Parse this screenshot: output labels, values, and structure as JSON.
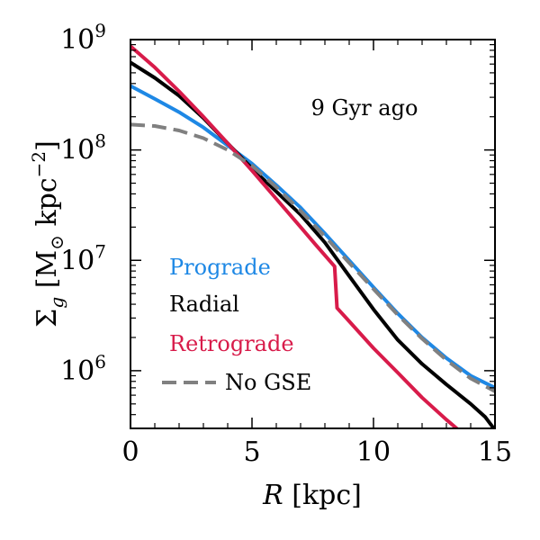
{
  "chart_data": {
    "type": "line",
    "xlabel": "R [kpc]",
    "ylabel": "Σ_g [M_⊙ kpc^−2]",
    "xlim": [
      0,
      15
    ],
    "ylim": [
      300000,
      1000000000
    ],
    "yscale": "log",
    "x_ticks": [
      0,
      5,
      10,
      15
    ],
    "x_tick_labels": [
      "0",
      "5",
      "10",
      "15"
    ],
    "y_ticks": [
      1000000,
      10000000,
      100000000,
      1000000000
    ],
    "y_tick_labels": [
      {
        "base": "10",
        "exp": "6"
      },
      {
        "base": "10",
        "exp": "7"
      },
      {
        "base": "10",
        "exp": "8"
      },
      {
        "base": "10",
        "exp": "9"
      }
    ],
    "annotation": "9 Gyr ago",
    "grid": false,
    "legend_placement": "lower-left",
    "series": [
      {
        "name": "Prograde",
        "color": "#1e88e5",
        "dash": false,
        "points": [
          [
            0,
            380000000
          ],
          [
            1,
            290000000
          ],
          [
            2,
            220000000
          ],
          [
            3,
            160000000
          ],
          [
            4,
            110000000
          ],
          [
            5,
            75000000
          ],
          [
            6,
            48000000
          ],
          [
            7,
            30000000
          ],
          [
            8,
            17500000
          ],
          [
            9,
            10000000
          ],
          [
            10,
            5700000
          ],
          [
            11,
            3300000
          ],
          [
            12,
            2000000
          ],
          [
            13,
            1300000
          ],
          [
            14,
            900000
          ],
          [
            15,
            700000
          ]
        ]
      },
      {
        "name": "Radial",
        "color": "#000000",
        "dash": false,
        "points": [
          [
            0,
            620000000
          ],
          [
            1,
            450000000
          ],
          [
            2,
            310000000
          ],
          [
            3,
            195000000
          ],
          [
            4,
            115000000
          ],
          [
            5,
            68000000
          ],
          [
            6,
            42000000
          ],
          [
            7,
            26000000
          ],
          [
            8,
            14500000
          ],
          [
            9,
            7200000
          ],
          [
            10,
            3600000
          ],
          [
            11,
            1900000
          ],
          [
            12,
            1150000
          ],
          [
            13,
            750000
          ],
          [
            14,
            500000
          ],
          [
            14.6,
            380000
          ],
          [
            15,
            290000
          ]
        ]
      },
      {
        "name": "Retrograde",
        "color": "#d81b4a",
        "dash": false,
        "points": [
          [
            0,
            870000000
          ],
          [
            1,
            560000000
          ],
          [
            2,
            340000000
          ],
          [
            3,
            200000000
          ],
          [
            4,
            115000000
          ],
          [
            5,
            65000000
          ],
          [
            6,
            36000000
          ],
          [
            7,
            20000000
          ],
          [
            7.6,
            14000000
          ],
          [
            8.4,
            8800000
          ],
          [
            8.5,
            3700000
          ],
          [
            9,
            2800000
          ],
          [
            10,
            1600000
          ],
          [
            11,
            960000
          ],
          [
            12,
            570000
          ],
          [
            13,
            360000
          ],
          [
            13.5,
            290000
          ]
        ]
      },
      {
        "name": "No GSE",
        "color": "#808080",
        "dash": true,
        "points": [
          [
            0,
            170000000
          ],
          [
            1,
            165000000
          ],
          [
            2,
            150000000
          ],
          [
            3,
            128000000
          ],
          [
            4,
            100000000
          ],
          [
            5,
            72000000
          ],
          [
            6,
            46000000
          ],
          [
            7,
            28000000
          ],
          [
            8,
            16500000
          ],
          [
            9,
            9500000
          ],
          [
            10,
            5500000
          ],
          [
            11,
            3200000
          ],
          [
            12,
            1950000
          ],
          [
            13,
            1250000
          ],
          [
            14,
            850000
          ],
          [
            15,
            650000
          ]
        ]
      }
    ]
  }
}
